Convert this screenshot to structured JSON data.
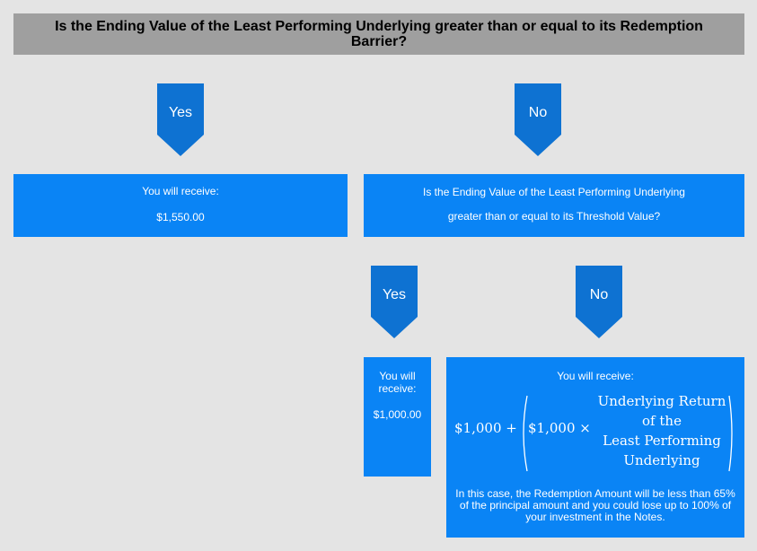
{
  "header": {
    "question": "Is the Ending Value of the Least Performing Underlying greater than or equal to its Redemption Barrier?"
  },
  "branches": {
    "top_yes": "Yes",
    "top_no": "No",
    "sub_yes": "Yes",
    "sub_no": "No"
  },
  "box_receive_1550": {
    "line1": "You will receive:",
    "line2": "$1,550.00"
  },
  "box_threshold_question": {
    "line1": "Is the Ending Value of the Least Performing Underlying",
    "line2": "greater than or equal to its Threshold Value?"
  },
  "box_receive_1000": {
    "line1": "You will",
    "line2": "receive:",
    "line3": "$1,000.00"
  },
  "box_formula": {
    "heading": "You will receive:",
    "term1": "$1,000 +",
    "term2": "$1,000 ×",
    "fraction": [
      "Underlying Return",
      "of the",
      "Least Performing",
      "Underlying"
    ],
    "note": "In this case, the Redemption Amount will be less than 65% of the principal amount and you could lose up to 100% of your investment in the Notes."
  },
  "colors": {
    "background": "#e4e4e4",
    "header": "#9f9f9f",
    "box": "#0a84f5",
    "arrow": "#0e72d2"
  }
}
